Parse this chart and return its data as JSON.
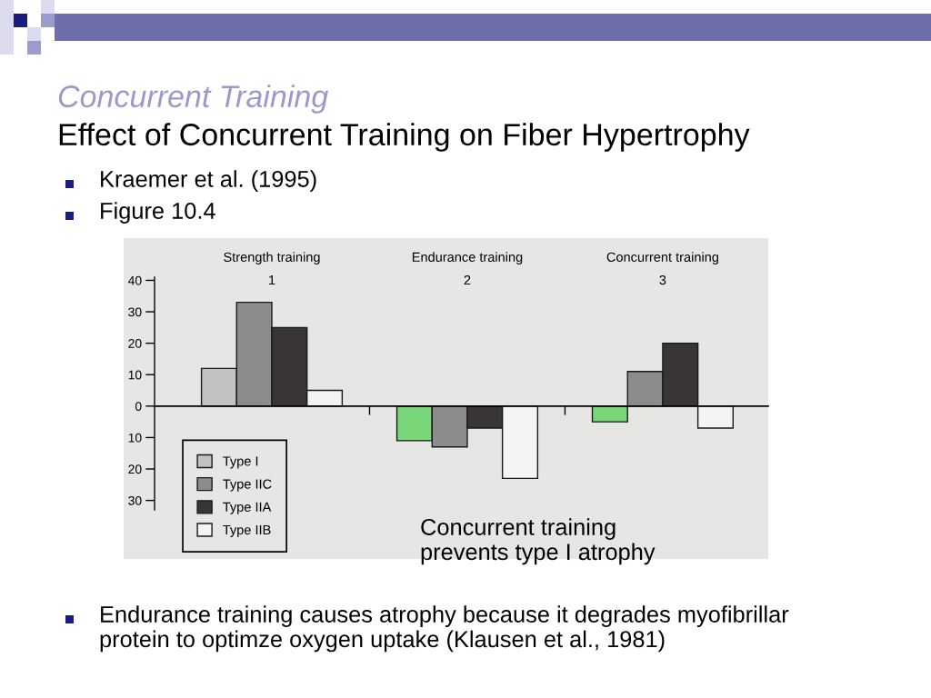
{
  "chart_data": {
    "type": "bar",
    "title": "Concurrent Training",
    "subtitle": "Effect of Concurrent Training on Fiber Hypertrophy",
    "categories": [
      "Strength training\n1",
      "Endurance training\n2",
      "Concurrent training\n3"
    ],
    "series": [
      {
        "name": "Type I",
        "colors": [
          "#c2c2c2",
          "#79d679",
          "#79d679"
        ],
        "values": [
          12,
          -11,
          -5
        ]
      },
      {
        "name": "Type IIC",
        "color": "#8c8c8c",
        "values": [
          33,
          -13,
          11
        ]
      },
      {
        "name": "Type IIA",
        "color": "#3a3535",
        "values": [
          25,
          -7,
          20
        ]
      },
      {
        "name": "Type IIB",
        "color": "#f4f4f4",
        "values": [
          5,
          -23,
          -7
        ]
      }
    ],
    "ylim": [
      -33,
      41
    ],
    "yticks": [
      {
        "value": -30,
        "label": "30"
      },
      {
        "value": -20,
        "label": "20"
      },
      {
        "value": -10,
        "label": "10"
      },
      0,
      10,
      20,
      30,
      40
    ],
    "legend": "bottom left",
    "annotations": [
      "Kraemer et al. (1995)",
      "Figure 10.4",
      "Concurrent training\nprevents type I atrophy",
      "Endurance training causes atrophy because it degrades myofibrillar\nprotein to optimze oxygen uptake (Klausen et al., 1981)"
    ]
  }
}
